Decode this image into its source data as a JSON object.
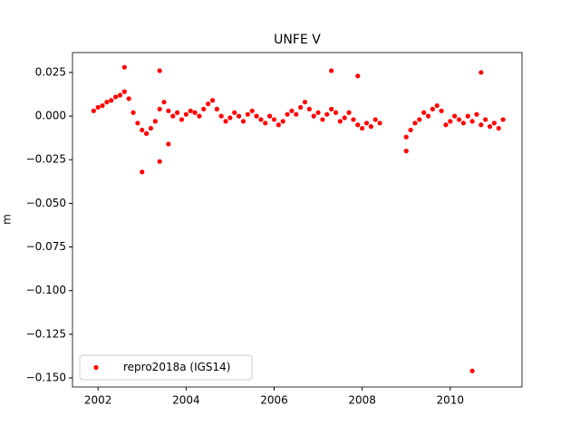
{
  "chart_data": {
    "type": "scatter",
    "title": "UNFE V",
    "ylabel": "m",
    "x": [
      2001.9,
      2002.0,
      2002.1,
      2002.2,
      2002.3,
      2002.4,
      2002.5,
      2002.6,
      2002.7,
      2002.8,
      2002.9,
      2003.0,
      2003.1,
      2003.2,
      2003.3,
      2003.4,
      2003.5,
      2003.6,
      2003.7,
      2003.8,
      2003.9,
      2004.0,
      2004.1,
      2004.2,
      2004.3,
      2004.4,
      2004.5,
      2004.6,
      2004.7,
      2004.8,
      2004.9,
      2005.0,
      2005.1,
      2005.2,
      2005.3,
      2005.4,
      2005.5,
      2005.6,
      2005.7,
      2005.8,
      2005.9,
      2006.0,
      2006.1,
      2006.2,
      2006.3,
      2006.4,
      2006.5,
      2006.6,
      2006.7,
      2006.8,
      2006.9,
      2007.0,
      2007.1,
      2007.2,
      2007.3,
      2007.4,
      2007.5,
      2007.6,
      2007.7,
      2007.8,
      2007.9,
      2008.0,
      2008.1,
      2008.2,
      2008.3,
      2008.4,
      2009.0,
      2009.1,
      2009.2,
      2009.3,
      2009.4,
      2009.5,
      2009.6,
      2009.7,
      2009.8,
      2009.9,
      2010.0,
      2010.1,
      2010.2,
      2010.3,
      2010.4,
      2010.5,
      2010.6,
      2010.7,
      2010.8,
      2010.9,
      2011.0,
      2011.1,
      2011.2,
      2002.6,
      2003.0,
      2003.4,
      2003.4,
      2007.3,
      2007.9,
      2010.5,
      2010.7,
      2003.6,
      2009.0
    ],
    "series": [
      {
        "name": "repro2018a (IGS14)",
        "color": "#ff0000",
        "values": [
          0.003,
          0.005,
          0.006,
          0.008,
          0.009,
          0.011,
          0.012,
          0.014,
          0.01,
          0.002,
          -0.004,
          -0.008,
          -0.01,
          -0.007,
          -0.003,
          0.004,
          0.008,
          0.003,
          0.0,
          0.002,
          -0.002,
          0.001,
          0.003,
          0.002,
          0.0,
          0.004,
          0.007,
          0.009,
          0.004,
          0.0,
          -0.003,
          -0.001,
          0.002,
          0.0,
          -0.003,
          0.001,
          0.003,
          0.0,
          -0.002,
          -0.004,
          0.0,
          -0.002,
          -0.005,
          -0.003,
          0.001,
          0.003,
          0.001,
          0.005,
          0.008,
          0.004,
          0.0,
          0.002,
          -0.002,
          0.001,
          0.004,
          0.002,
          -0.003,
          -0.001,
          0.002,
          -0.002,
          -0.005,
          -0.007,
          -0.004,
          -0.006,
          -0.002,
          -0.004,
          -0.012,
          -0.008,
          -0.004,
          -0.002,
          0.002,
          0.0,
          0.004,
          0.006,
          0.003,
          -0.005,
          -0.003,
          0.0,
          -0.002,
          -0.004,
          0.0,
          -0.003,
          0.001,
          -0.005,
          -0.002,
          -0.006,
          -0.004,
          -0.007,
          -0.002,
          0.028,
          -0.032,
          0.026,
          -0.026,
          0.026,
          0.023,
          -0.146,
          0.025,
          -0.016,
          -0.02
        ]
      }
    ],
    "xlim": [
      2001.42,
      2011.63
    ],
    "xticks": [
      2002,
      2004,
      2006,
      2008,
      2010
    ],
    "ylim": [
      -0.1552,
      0.0364
    ],
    "yticks": [
      {
        "value": 0.025,
        "label": "0.025"
      },
      {
        "value": 0,
        "label": "0.000"
      },
      {
        "value": -0.025,
        "label": "−0.025"
      },
      {
        "value": -0.05,
        "label": "−0.050"
      },
      {
        "value": -0.075,
        "label": "−0.075"
      },
      {
        "value": -0.1,
        "label": "−0.100"
      },
      {
        "value": -0.125,
        "label": "−0.125"
      },
      {
        "value": -0.15,
        "label": "−0.150"
      }
    ],
    "legend": "lower left"
  }
}
